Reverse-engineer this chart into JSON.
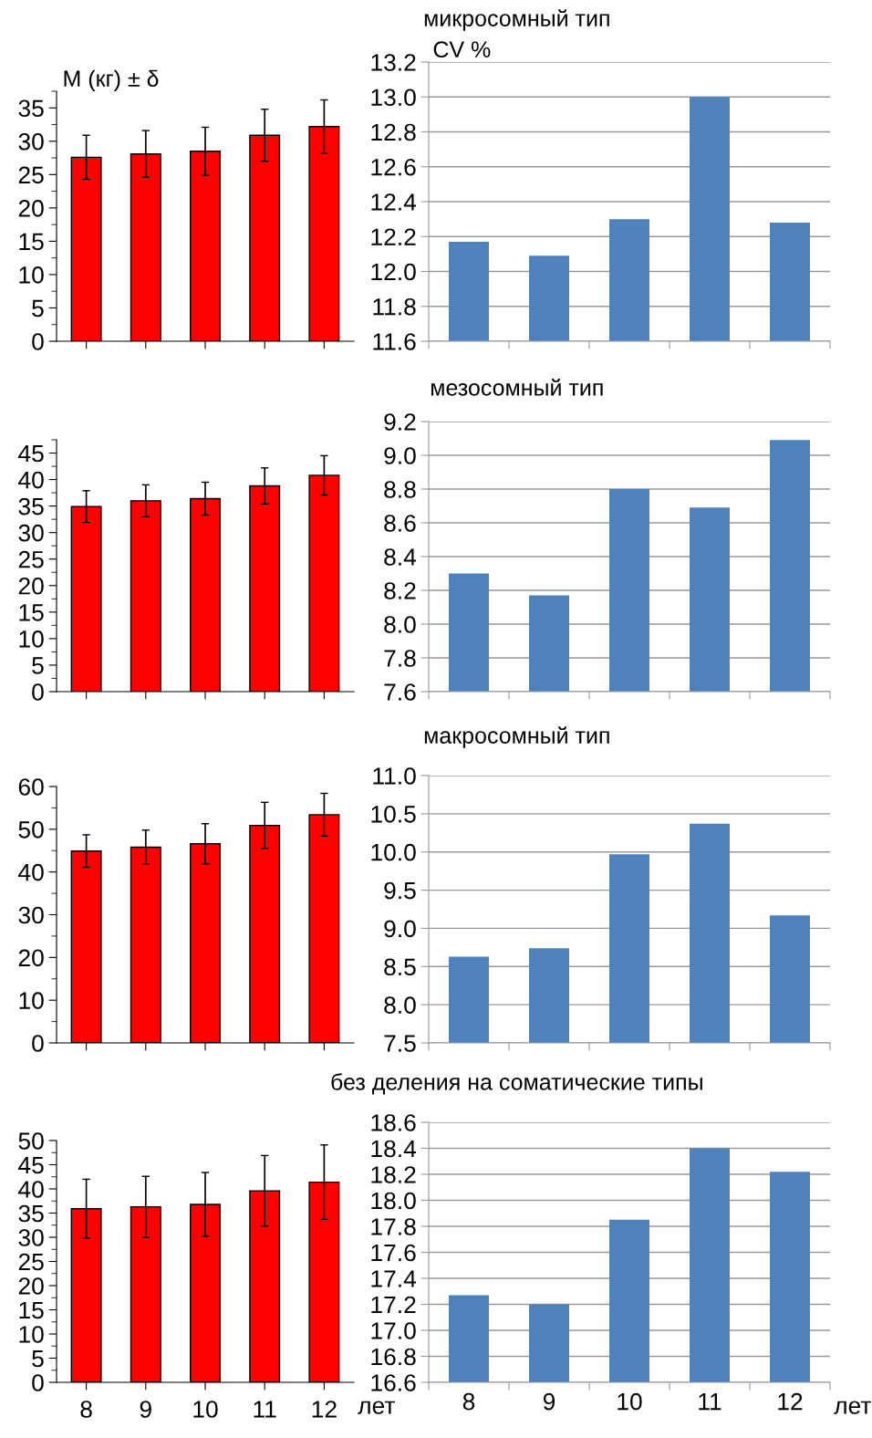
{
  "chart_data": [
    {
      "type": "bar",
      "ylabel": "M (кг) ± δ",
      "categories": [
        "8",
        "9",
        "10",
        "11",
        "12"
      ],
      "values": [
        27.6,
        28.1,
        28.5,
        30.9,
        32.2
      ],
      "errors": [
        3.3,
        3.5,
        3.6,
        3.9,
        4.0
      ],
      "color": "#ff0000",
      "ylim": [
        0,
        37.5
      ],
      "yticks": [
        0,
        5,
        10,
        15,
        20,
        25,
        30,
        35
      ],
      "tick_labels": "y"
    },
    {
      "type": "bar",
      "title": "микросомный тип",
      "ylabel": "CV %",
      "categories": [
        "8",
        "9",
        "10",
        "11",
        "12"
      ],
      "values": [
        12.17,
        12.09,
        12.3,
        13.0,
        12.28
      ],
      "color": "#4f81bd",
      "ylim": [
        11.6,
        13.2
      ],
      "yticks": [
        11.6,
        11.8,
        {
          "value": 12,
          "label": "12.0"
        },
        12.2,
        12.4,
        12.6,
        12.8,
        {
          "value": 13,
          "label": "13.0"
        },
        13.2
      ],
      "grid": "y",
      "tick_labels": "y"
    },
    {
      "type": "bar",
      "categories": [
        "8",
        "9",
        "10",
        "11",
        "12"
      ],
      "values": [
        34.9,
        36.0,
        36.4,
        38.8,
        40.8
      ],
      "errors": [
        3.0,
        3.0,
        3.1,
        3.4,
        3.7
      ],
      "color": "#ff0000",
      "ylim": [
        0,
        47.5
      ],
      "yticks": [
        0,
        5,
        10,
        15,
        20,
        25,
        30,
        35,
        40,
        45
      ],
      "tick_labels": "y"
    },
    {
      "type": "bar",
      "title": "мезосомный тип",
      "categories": [
        "8",
        "9",
        "10",
        "11",
        "12"
      ],
      "values": [
        8.3,
        8.17,
        8.8,
        8.69,
        9.09
      ],
      "color": "#4f81bd",
      "ylim": [
        7.6,
        9.2
      ],
      "yticks": [
        7.6,
        7.8,
        {
          "value": 8,
          "label": "8.0"
        },
        8.2,
        8.4,
        8.6,
        8.8,
        {
          "value": 9,
          "label": "9.0"
        },
        9.2
      ],
      "grid": "y",
      "tick_labels": "y"
    },
    {
      "type": "bar",
      "categories": [
        "8",
        "9",
        "10",
        "11",
        "12"
      ],
      "values": [
        44.9,
        45.8,
        46.6,
        50.9,
        53.4
      ],
      "errors": [
        3.8,
        4.0,
        4.7,
        5.4,
        5.0
      ],
      "color": "#ff0000",
      "ylim": [
        0,
        60
      ],
      "yticks": [
        0,
        10,
        20,
        30,
        40,
        50,
        60
      ],
      "tick_labels": "y"
    },
    {
      "type": "bar",
      "title": "макросомный тип",
      "categories": [
        "8",
        "9",
        "10",
        "11",
        "12"
      ],
      "values": [
        8.63,
        8.74,
        9.97,
        10.37,
        9.17
      ],
      "color": "#4f81bd",
      "ylim": [
        7.5,
        11
      ],
      "yticks": [
        7.5,
        {
          "value": 8,
          "label": "8.0"
        },
        8.5,
        {
          "value": 9,
          "label": "9.0"
        },
        9.5,
        {
          "value": 10,
          "label": "10.0"
        },
        10.5,
        {
          "value": 11,
          "label": "11.0"
        }
      ],
      "grid": "y",
      "tick_labels": "y"
    },
    {
      "type": "bar",
      "xlabel": "лет",
      "categories": [
        "8",
        "9",
        "10",
        "11",
        "12"
      ],
      "values": [
        35.9,
        36.3,
        36.8,
        39.6,
        41.4
      ],
      "errors": [
        6.1,
        6.3,
        6.6,
        7.3,
        7.7
      ],
      "color": "#ff0000",
      "ylim": [
        0,
        50
      ],
      "yticks": [
        0,
        5,
        10,
        15,
        20,
        25,
        30,
        35,
        40,
        45,
        50
      ]
    },
    {
      "type": "bar",
      "title": "без деления на соматические типы",
      "xlabel": "лет",
      "categories": [
        "8",
        "9",
        "10",
        "11",
        "12"
      ],
      "values": [
        17.27,
        17.2,
        17.85,
        18.4,
        18.22
      ],
      "color": "#4f81bd",
      "ylim": [
        16.6,
        18.6
      ],
      "yticks": [
        16.6,
        16.8,
        {
          "value": 17,
          "label": "17.0"
        },
        17.2,
        17.4,
        17.6,
        17.8,
        {
          "value": 18,
          "label": "18.0"
        },
        18.2,
        18.4,
        18.6
      ],
      "grid": "y"
    }
  ]
}
